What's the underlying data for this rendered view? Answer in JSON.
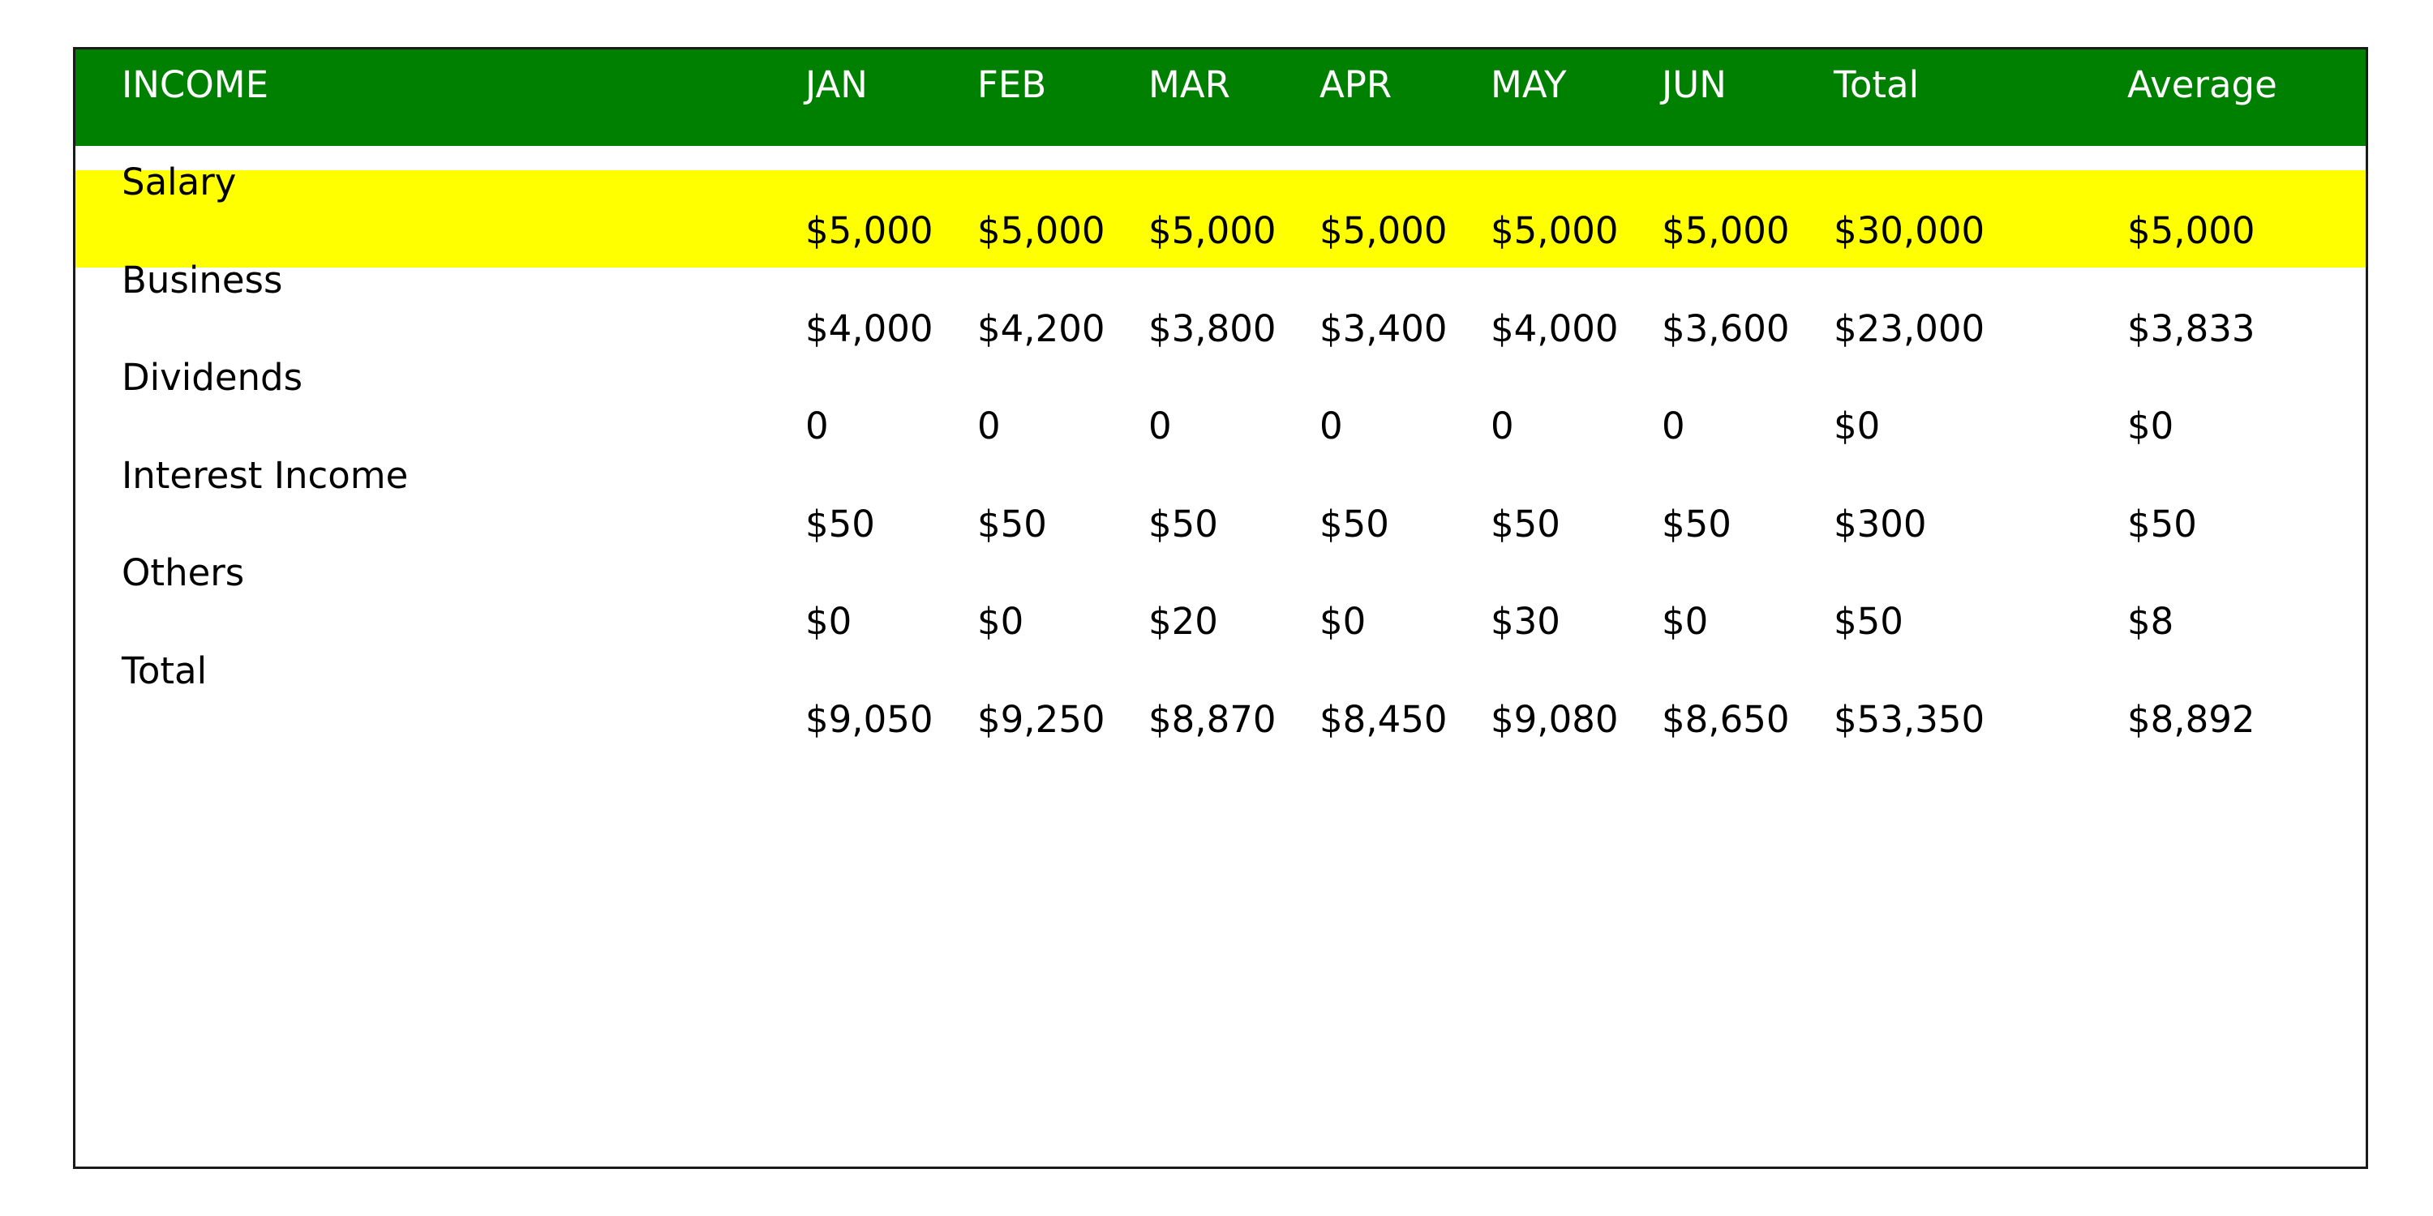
{
  "colors": {
    "header_band": "#008000",
    "header_text": "#ffffff",
    "highlight_band": "#ffff00",
    "text": "#000000",
    "frame": "#1a1a1a"
  },
  "chart_data": {
    "type": "table",
    "highlighted_row": "Salary",
    "columns": [
      "INCOME",
      "JAN",
      "FEB",
      "MAR",
      "APR",
      "MAY",
      "JUN",
      "Total",
      "Average"
    ],
    "rows": [
      {
        "label": "Salary",
        "cells": [
          "$5,000",
          "$5,000",
          "$5,000",
          "$5,000",
          "$5,000",
          "$5,000",
          "$30,000",
          "$5,000"
        ]
      },
      {
        "label": "Business",
        "cells": [
          "$4,000",
          "$4,200",
          "$3,800",
          "$3,400",
          "$4,000",
          "$3,600",
          "$23,000",
          "$3,833"
        ]
      },
      {
        "label": "Dividends",
        "cells": [
          "0",
          "0",
          "0",
          "0",
          "0",
          "0",
          "$0",
          "$0"
        ]
      },
      {
        "label": "Interest Income",
        "cells": [
          "$50",
          "$50",
          "$50",
          "$50",
          "$50",
          "$50",
          "$300",
          "$50"
        ]
      },
      {
        "label": "Others",
        "cells": [
          "$0",
          "$0",
          "$20",
          "$0",
          "$30",
          "$0",
          "$50",
          "$8"
        ]
      },
      {
        "label": "Total",
        "cells": [
          "$9,050",
          "$9,250",
          "$8,870",
          "$8,450",
          "$9,080",
          "$8,650",
          "$53,350",
          "$8,892"
        ]
      }
    ]
  }
}
